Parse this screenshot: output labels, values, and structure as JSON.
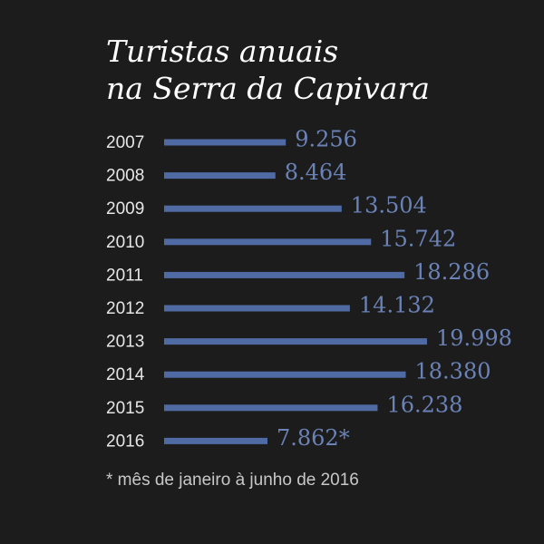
{
  "chart_data": {
    "type": "bar",
    "orientation": "horizontal",
    "title": [
      "Turistas anuais",
      "na Serra da Capivara"
    ],
    "categories": [
      "2007",
      "2008",
      "2009",
      "2010",
      "2011",
      "2012",
      "2013",
      "2014",
      "2015",
      "2016"
    ],
    "values": [
      9256,
      8464,
      13504,
      15742,
      18286,
      14132,
      19998,
      18380,
      16238,
      7862
    ],
    "value_labels": [
      "9.256",
      "8.464",
      "13.504",
      "15.742",
      "18.286",
      "14.132",
      "19.998",
      "18.380",
      "16.238",
      "7.862*"
    ],
    "color": "#506ba4",
    "label_color": "#6a82b6",
    "footnote": "* mês de janeiro à junho de 2016"
  }
}
